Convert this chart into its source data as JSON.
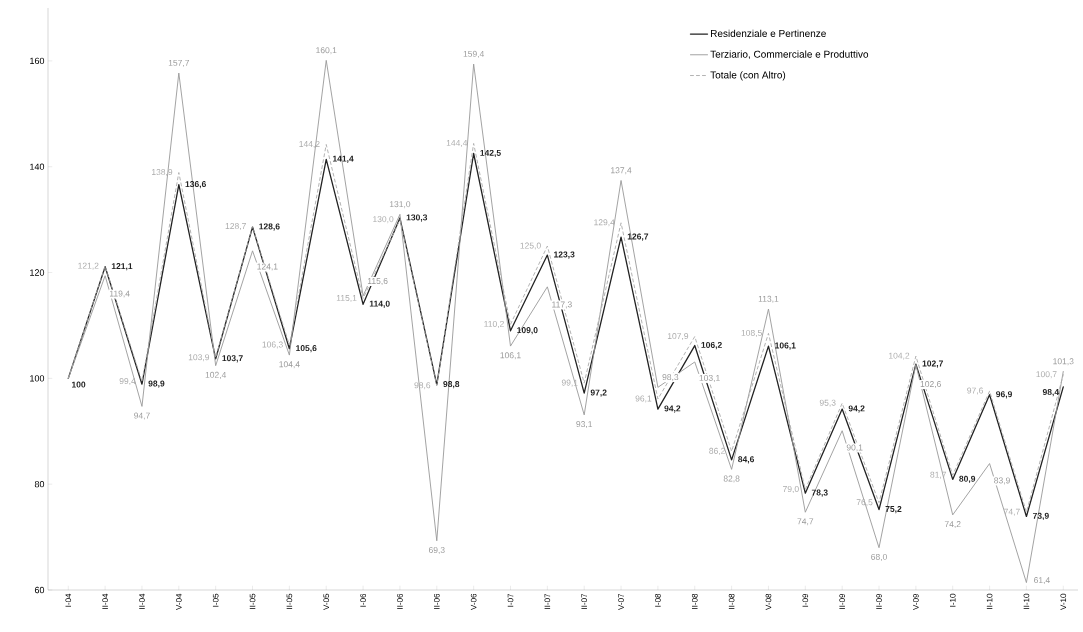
{
  "chart_data": {
    "type": "line",
    "categories": [
      "I-04",
      "II-04",
      "II-04",
      "V-04",
      "I-05",
      "II-05",
      "II-05",
      "V-05",
      "I-06",
      "II-06",
      "II-06",
      "V-06",
      "I-07",
      "II-07",
      "II-07",
      "V-07",
      "I-08",
      "II-08",
      "II-08",
      "V-08",
      "I-09",
      "II-09",
      "II-09",
      "V-09",
      "I-10",
      "II-10",
      "II-10",
      "V-10"
    ],
    "ylim": [
      60,
      170
    ],
    "yticks": [
      60,
      80,
      100,
      120,
      140,
      160
    ],
    "legend": "top right",
    "series": [
      {
        "name": "Residenziale e Pertinenze",
        "color": "#222222",
        "line_style": "solid",
        "values": [
          100,
          121.1,
          98.9,
          136.6,
          103.7,
          128.6,
          105.6,
          141.4,
          114.0,
          130.3,
          98.8,
          142.5,
          109.0,
          123.3,
          97.2,
          126.7,
          94.2,
          106.2,
          84.6,
          106.1,
          78.3,
          94.2,
          75.2,
          102.7,
          80.9,
          96.9,
          73.9,
          98.4
        ],
        "value_labels": [
          "100",
          "121,1",
          "98,9",
          "136,6",
          "103,7",
          "128,6",
          "105,6",
          "141,4",
          "114,0",
          "130,3",
          "98,8",
          "142,5",
          "109,0",
          "123,3",
          "97,2",
          "126,7",
          "94,2",
          "106,2",
          "84,6",
          "106,1",
          "78,3",
          "94,2",
          "75,2",
          "102,7",
          "80,9",
          "96,9",
          "73,9",
          "98,4"
        ]
      },
      {
        "name": "Terziario, Commerciale e Produttivo",
        "color": "#999999",
        "line_style": "solid",
        "values": [
          100,
          119.4,
          94.7,
          157.7,
          102.4,
          124.1,
          104.4,
          160.1,
          115.6,
          131.0,
          69.3,
          159.4,
          106.1,
          117.3,
          93.1,
          137.4,
          98.3,
          103.1,
          82.8,
          113.1,
          74.7,
          90.1,
          68.0,
          102.6,
          74.2,
          83.9,
          61.4,
          101.3
        ],
        "value_labels": [
          null,
          "119,4",
          "94,7",
          "157,7",
          "102,4",
          "124,1",
          "104,4",
          "160,1",
          "115,6",
          "131,0",
          "69,3",
          "159,4",
          "106,1",
          "117,3",
          "93,1",
          "137,4",
          "98,3",
          "103,1",
          "82,8",
          "113,1",
          "74,7",
          "90,1",
          "68,0",
          "102,6",
          "74,2",
          "83,9",
          "61,4",
          "101,3"
        ]
      },
      {
        "name": "Totale (con Altro)",
        "color": "#aaaaaa",
        "line_style": "dashed",
        "values": [
          100,
          121.2,
          99.4,
          138.9,
          103.9,
          128.7,
          106.3,
          144.2,
          115.1,
          130.0,
          98.6,
          144.4,
          110.2,
          125.0,
          99.1,
          129.4,
          96.1,
          107.9,
          86.2,
          108.5,
          79.0,
          95.3,
          76.5,
          104.2,
          81.7,
          97.6,
          74.7,
          100.7
        ],
        "value_labels": [
          null,
          "121,2",
          "99,4",
          "138,9",
          "103,9",
          "128,7",
          "106,3",
          "144,2",
          "115,1",
          "130,0",
          "98,6",
          "144,4",
          "110,2",
          "125,0",
          "99,1",
          "129,4",
          "96,1",
          "107,9",
          "86,2",
          "108,5",
          "79,0",
          "95,3",
          "76,5",
          "104,2",
          "81,7",
          "97,6",
          "74,7",
          "100,7"
        ]
      }
    ]
  }
}
